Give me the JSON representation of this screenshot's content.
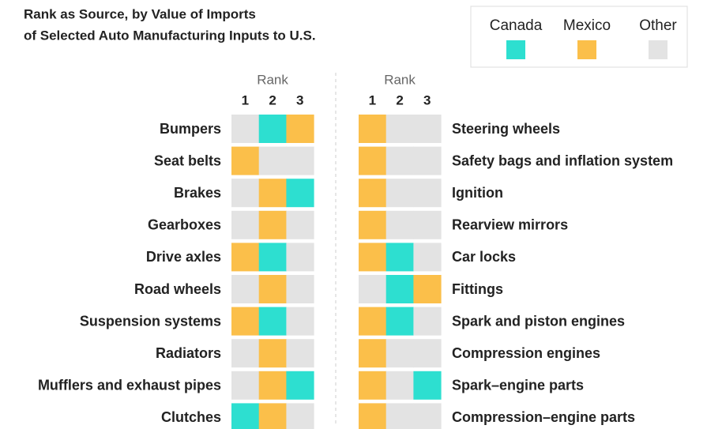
{
  "chart_data": {
    "type": "rank-grid",
    "title": [
      "Rank as Source, by Value of Imports",
      "of Selected Auto Manufacturing Inputs to U.S."
    ],
    "legend": [
      {
        "name": "Canada",
        "color": "#2ddfd0"
      },
      {
        "name": "Mexico",
        "color": "#fbbf4a"
      },
      {
        "name": "Other",
        "color": "#e3e3e3"
      }
    ],
    "rank_label": "Rank",
    "ranks": [
      1,
      2,
      3
    ],
    "panels": [
      {
        "rows": [
          {
            "label": "Bumpers",
            "sources": [
              "Other",
              "Canada",
              "Mexico"
            ]
          },
          {
            "label": "Seat belts",
            "sources": [
              "Mexico",
              "Other",
              "Other"
            ]
          },
          {
            "label": "Brakes",
            "sources": [
              "Other",
              "Mexico",
              "Canada"
            ]
          },
          {
            "label": "Gearboxes",
            "sources": [
              "Other",
              "Mexico",
              "Other"
            ]
          },
          {
            "label": "Drive axles",
            "sources": [
              "Mexico",
              "Canada",
              "Other"
            ]
          },
          {
            "label": "Road wheels",
            "sources": [
              "Other",
              "Mexico",
              "Other"
            ]
          },
          {
            "label": "Suspension systems",
            "sources": [
              "Mexico",
              "Canada",
              "Other"
            ]
          },
          {
            "label": "Radiators",
            "sources": [
              "Other",
              "Mexico",
              "Other"
            ]
          },
          {
            "label": "Mufflers and exhaust pipes",
            "sources": [
              "Other",
              "Mexico",
              "Canada"
            ]
          },
          {
            "label": "Clutches",
            "sources": [
              "Canada",
              "Mexico",
              "Other"
            ]
          }
        ]
      },
      {
        "rows": [
          {
            "label": "Steering wheels",
            "sources": [
              "Mexico",
              "Other",
              "Other"
            ]
          },
          {
            "label": "Safety bags and inflation system",
            "sources": [
              "Mexico",
              "Other",
              "Other"
            ]
          },
          {
            "label": "Ignition",
            "sources": [
              "Mexico",
              "Other",
              "Other"
            ]
          },
          {
            "label": "Rearview mirrors",
            "sources": [
              "Mexico",
              "Other",
              "Other"
            ]
          },
          {
            "label": "Car locks",
            "sources": [
              "Mexico",
              "Canada",
              "Other"
            ]
          },
          {
            "label": "Fittings",
            "sources": [
              "Other",
              "Canada",
              "Mexico"
            ]
          },
          {
            "label": "Spark and piston engines",
            "sources": [
              "Mexico",
              "Canada",
              "Other"
            ]
          },
          {
            "label": "Compression engines",
            "sources": [
              "Mexico",
              "Other",
              "Other"
            ]
          },
          {
            "label": "Spark–engine parts",
            "sources": [
              "Mexico",
              "Other",
              "Canada"
            ]
          },
          {
            "label": "Compression–engine parts",
            "sources": [
              "Mexico",
              "Other",
              "Other"
            ]
          }
        ]
      }
    ]
  }
}
